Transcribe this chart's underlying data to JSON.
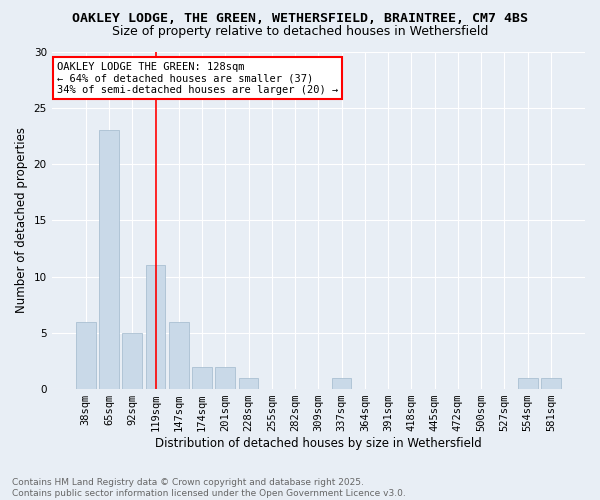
{
  "title_line1": "OAKLEY LODGE, THE GREEN, WETHERSFIELD, BRAINTREE, CM7 4BS",
  "title_line2": "Size of property relative to detached houses in Wethersfield",
  "xlabel": "Distribution of detached houses by size in Wethersfield",
  "ylabel": "Number of detached properties",
  "categories": [
    "38sqm",
    "65sqm",
    "92sqm",
    "119sqm",
    "147sqm",
    "174sqm",
    "201sqm",
    "228sqm",
    "255sqm",
    "282sqm",
    "309sqm",
    "337sqm",
    "364sqm",
    "391sqm",
    "418sqm",
    "445sqm",
    "472sqm",
    "500sqm",
    "527sqm",
    "554sqm",
    "581sqm"
  ],
  "values": [
    6,
    23,
    5,
    11,
    6,
    2,
    2,
    1,
    0,
    0,
    0,
    1,
    0,
    0,
    0,
    0,
    0,
    0,
    0,
    1,
    1
  ],
  "bar_color": "#c9d9e8",
  "bar_edge_color": "#a0b8cc",
  "background_color": "#e8eef5",
  "annotation_text": "OAKLEY LODGE THE GREEN: 128sqm\n← 64% of detached houses are smaller (37)\n34% of semi-detached houses are larger (20) →",
  "annotation_box_color": "white",
  "annotation_box_edge": "red",
  "ylim": [
    0,
    30
  ],
  "yticks": [
    0,
    5,
    10,
    15,
    20,
    25,
    30
  ],
  "footer_line1": "Contains HM Land Registry data © Crown copyright and database right 2025.",
  "footer_line2": "Contains public sector information licensed under the Open Government Licence v3.0.",
  "grid_color": "white",
  "title_fontsize": 9.5,
  "subtitle_fontsize": 9,
  "axis_label_fontsize": 8.5,
  "tick_fontsize": 7.5,
  "annotation_fontsize": 7.5,
  "footer_fontsize": 6.5,
  "red_line_index": 3
}
